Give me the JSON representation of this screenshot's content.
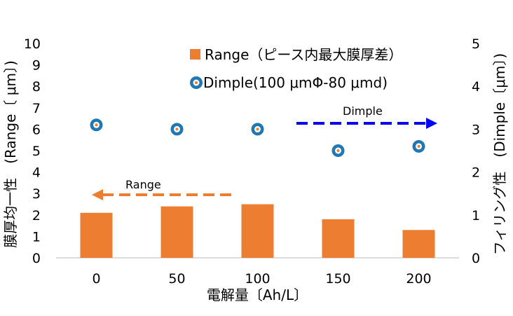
{
  "chart_data": {
    "type": "bar",
    "categories": [
      "0",
      "50",
      "100",
      "150",
      "200"
    ],
    "series": [
      {
        "name": "Range（ピース内最大膜厚差）",
        "type": "bar",
        "axis": "left",
        "values": [
          2.1,
          2.4,
          2.5,
          1.8,
          1.3
        ],
        "color": "#ED7D31"
      },
      {
        "name": "Dimple(100 μmΦ-80 μmd)",
        "type": "scatter",
        "axis": "right",
        "values": [
          3.1,
          3.0,
          3.0,
          2.5,
          2.6
        ],
        "color": "#1F78B4"
      }
    ],
    "xlabel": "電解量〔Ah/L〕",
    "ylabel_left": "膜厚均一性　(Range〔 μm〕)",
    "ylabel_right": "フィリング性　(Dimple〔μm〕)",
    "ylim_left": [
      0,
      10
    ],
    "ylim_right": [
      0,
      5
    ],
    "yticks_left": [
      "0",
      "1",
      "2",
      "3",
      "4",
      "5",
      "6",
      "7",
      "8",
      "9",
      "10"
    ],
    "yticks_right": [
      "0",
      "1",
      "2",
      "3",
      "4",
      "5"
    ],
    "grid": false,
    "legend_position": "top-right",
    "annotations": [
      {
        "text": "Range",
        "arrow_direction": "left",
        "color": "#ED7D31"
      },
      {
        "text": "Dimple",
        "arrow_direction": "right",
        "color": "#0000FF"
      }
    ]
  }
}
